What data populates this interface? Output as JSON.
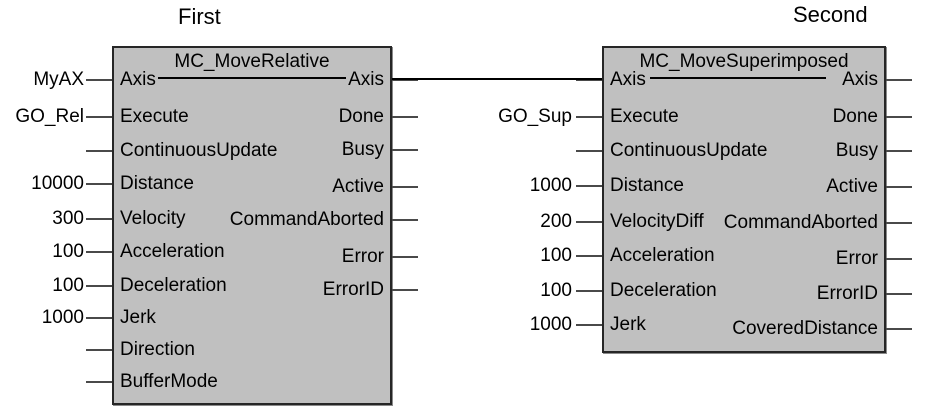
{
  "captions": {
    "first": "First",
    "second": "Second"
  },
  "colors": {
    "background": "#ffffff",
    "block_fill": "#c0c0c0",
    "block_border": "#262626",
    "wire": "#000000",
    "stub": "#4a4a4a",
    "text": "#000000"
  },
  "blocks": [
    {
      "title": "MC_MoveRelative",
      "caption": "First",
      "inputs": [
        {
          "label": "Axis",
          "value": "MyAX"
        },
        {
          "label": "Execute",
          "value": "GO_Rel"
        },
        {
          "label": "ContinuousUpdate",
          "value": ""
        },
        {
          "label": "Distance",
          "value": "10000"
        },
        {
          "label": "Velocity",
          "value": "300"
        },
        {
          "label": "Acceleration",
          "value": "100"
        },
        {
          "label": "Deceleration",
          "value": "100"
        },
        {
          "label": "Jerk",
          "value": "1000"
        },
        {
          "label": "Direction",
          "value": ""
        },
        {
          "label": "BufferMode",
          "value": ""
        }
      ],
      "outputs": [
        {
          "label": "Axis"
        },
        {
          "label": "Done"
        },
        {
          "label": "Busy"
        },
        {
          "label": "Active"
        },
        {
          "label": "CommandAborted"
        },
        {
          "label": "Error"
        },
        {
          "label": "ErrorID"
        }
      ]
    },
    {
      "title": "MC_MoveSuperimposed",
      "caption": "Second",
      "inputs": [
        {
          "label": "Axis",
          "value": ""
        },
        {
          "label": "Execute",
          "value": "GO_Sup"
        },
        {
          "label": "ContinuousUpdate",
          "value": ""
        },
        {
          "label": "Distance",
          "value": "1000"
        },
        {
          "label": "VelocityDiff",
          "value": "200"
        },
        {
          "label": "Acceleration",
          "value": "100"
        },
        {
          "label": "Deceleration",
          "value": "100"
        },
        {
          "label": "Jerk",
          "value": "1000"
        }
      ],
      "outputs": [
        {
          "label": "Axis"
        },
        {
          "label": "Done"
        },
        {
          "label": "Busy"
        },
        {
          "label": "Active"
        },
        {
          "label": "CommandAborted"
        },
        {
          "label": "Error"
        },
        {
          "label": "ErrorID"
        },
        {
          "label": "CoveredDistance"
        }
      ]
    }
  ],
  "connection": {
    "from": "MC_MoveRelative.Axis",
    "to": "MC_MoveSuperimposed.Axis"
  }
}
